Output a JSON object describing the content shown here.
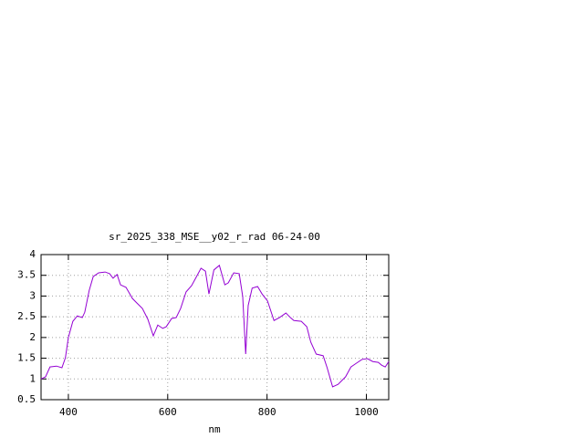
{
  "chart_data": {
    "type": "line",
    "title": "sr_2025_338_MSE__y02_r_rad 06-24-00",
    "x_label": "nm",
    "x": [
      345,
      354,
      363,
      376,
      387,
      394,
      400,
      409,
      418,
      428,
      433,
      442,
      450,
      461,
      474,
      483,
      490,
      498,
      505,
      516,
      529,
      538,
      549,
      560,
      571,
      580,
      590,
      597,
      608,
      617,
      626,
      637,
      648,
      658,
      667,
      676,
      683,
      693,
      704,
      715,
      722,
      733,
      744,
      751,
      757,
      762,
      770,
      781,
      790,
      801,
      814,
      825,
      838,
      847,
      854,
      869,
      880,
      888,
      899,
      913,
      921,
      932,
      943,
      958,
      969,
      980,
      991,
      1002,
      1013,
      1024,
      1031,
      1038,
      1045
    ],
    "series": [
      {
        "name": "sr_2025_338_MSE__y02_r_rad 06-24-00",
        "color": "#9400d3",
        "values": [
          1.0,
          1.05,
          1.29,
          1.31,
          1.27,
          1.51,
          2.0,
          2.39,
          2.52,
          2.48,
          2.61,
          3.14,
          3.47,
          3.56,
          3.58,
          3.54,
          3.43,
          3.52,
          3.27,
          3.21,
          2.94,
          2.83,
          2.7,
          2.44,
          2.04,
          2.3,
          2.22,
          2.26,
          2.46,
          2.48,
          2.7,
          3.1,
          3.25,
          3.47,
          3.67,
          3.6,
          3.05,
          3.63,
          3.74,
          3.27,
          3.32,
          3.56,
          3.54,
          2.99,
          1.6,
          2.77,
          3.19,
          3.23,
          3.05,
          2.88,
          2.41,
          2.48,
          2.59,
          2.48,
          2.41,
          2.39,
          2.26,
          1.89,
          1.6,
          1.56,
          1.27,
          0.81,
          0.87,
          1.05,
          1.29,
          1.38,
          1.47,
          1.49,
          1.42,
          1.4,
          1.33,
          1.29,
          1.42
        ]
      }
    ],
    "xlim": [
      345,
      1045
    ],
    "xticks": [
      400,
      600,
      800,
      1000
    ],
    "ylim": [
      0.5,
      4
    ],
    "yticks": [
      0.5,
      1,
      1.5,
      2,
      2.5,
      3,
      3.5,
      4
    ],
    "grid": true
  }
}
